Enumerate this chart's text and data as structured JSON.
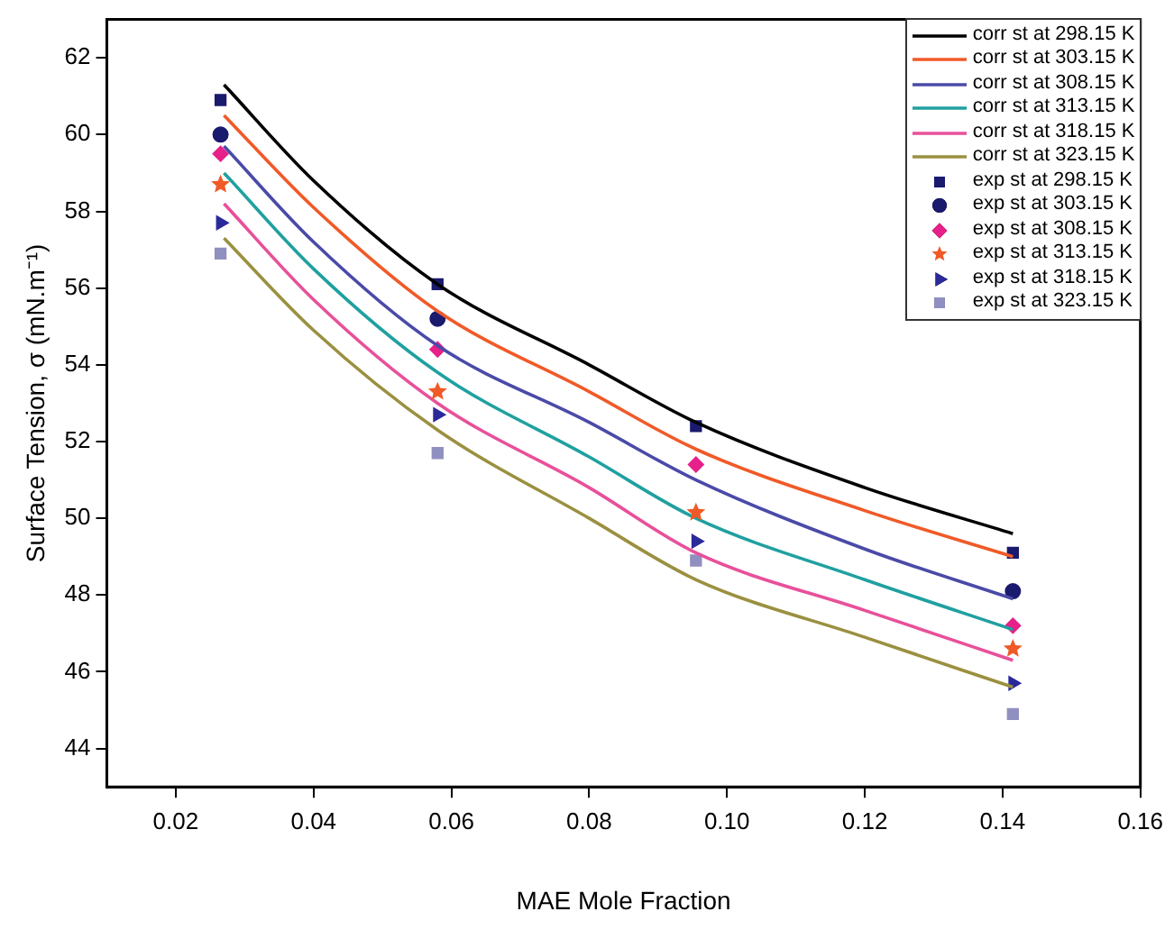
{
  "chart_data": {
    "type": "line",
    "xlabel": "MAE Mole Fraction",
    "ylabel": "Surface Tension, σ (mN.m⁻¹)",
    "xlim": [
      0.01,
      0.16
    ],
    "xticks": [
      {
        "value": 0.02,
        "label": "0.02"
      },
      {
        "value": 0.04,
        "label": "0.04"
      },
      {
        "value": 0.06,
        "label": "0.06"
      },
      {
        "value": 0.08,
        "label": "0.08"
      },
      {
        "value": 0.1,
        "label": "0.10"
      },
      {
        "value": 0.12,
        "label": "0.12"
      },
      {
        "value": 0.14,
        "label": "0.14"
      },
      {
        "value": 0.16,
        "label": "0.16"
      }
    ],
    "ylim": [
      43,
      63
    ],
    "yticks": [
      44,
      46,
      48,
      50,
      52,
      54,
      56,
      58,
      60,
      62
    ],
    "grid": false,
    "legend": "top right",
    "line_style": "solid",
    "series": [
      {
        "name": "corr st at 298.15 K",
        "color": "#000000",
        "marker": "none",
        "x": [
          0.027,
          0.04,
          0.058,
          0.08,
          0.0955,
          0.12,
          0.1415
        ],
        "values": [
          61.3,
          58.8,
          56.1,
          54.0,
          52.5,
          50.8,
          49.6
        ]
      },
      {
        "name": "corr st at 303.15 K",
        "color": "#f05a28",
        "marker": "none",
        "x": [
          0.027,
          0.04,
          0.058,
          0.08,
          0.0955,
          0.12,
          0.1415
        ],
        "values": [
          60.5,
          58.1,
          55.4,
          53.3,
          51.8,
          50.2,
          49.0
        ]
      },
      {
        "name": "corr st at 308.15 K",
        "color": "#4a4aa8",
        "marker": "none",
        "x": [
          0.027,
          0.04,
          0.058,
          0.08,
          0.0955,
          0.12,
          0.1415
        ],
        "values": [
          59.7,
          57.2,
          54.5,
          52.5,
          51.0,
          49.2,
          47.9
        ]
      },
      {
        "name": "corr st at 313.15 K",
        "color": "#20a0a0",
        "marker": "none",
        "x": [
          0.027,
          0.04,
          0.058,
          0.08,
          0.0955,
          0.12,
          0.1415
        ],
        "values": [
          59.0,
          56.5,
          53.8,
          51.6,
          50.0,
          48.4,
          47.1
        ]
      },
      {
        "name": "corr st at 318.15 K",
        "color": "#e8509a",
        "marker": "none",
        "x": [
          0.027,
          0.04,
          0.058,
          0.08,
          0.0955,
          0.12,
          0.1415
        ],
        "values": [
          58.2,
          55.7,
          53.0,
          50.8,
          49.1,
          47.6,
          46.3
        ]
      },
      {
        "name": "corr st at 323.15 K",
        "color": "#9a9040",
        "marker": "none",
        "x": [
          0.027,
          0.04,
          0.058,
          0.08,
          0.0955,
          0.12,
          0.1415
        ],
        "values": [
          57.3,
          54.9,
          52.3,
          50.0,
          48.4,
          46.9,
          45.6
        ]
      },
      {
        "name": "exp st at 298.15 K",
        "type": "scatter",
        "color": "#1a1a6e",
        "marker": "square",
        "x": [
          0.0265,
          0.058,
          0.0955,
          0.1415
        ],
        "values": [
          60.9,
          56.1,
          52.4,
          49.1
        ]
      },
      {
        "name": "exp st at 303.15 K",
        "type": "scatter",
        "color": "#1a1a6e",
        "marker": "circle",
        "x": [
          0.0265,
          0.058,
          0.0955,
          0.1415
        ],
        "values": [
          60.0,
          55.2,
          null,
          48.1
        ]
      },
      {
        "name": "exp st at 308.15 K",
        "type": "scatter",
        "color": "#e8208a",
        "marker": "diamond",
        "x": [
          0.0265,
          0.058,
          0.0955,
          0.1415
        ],
        "values": [
          59.5,
          54.4,
          51.4,
          47.2
        ]
      },
      {
        "name": "exp st at 313.15 K",
        "type": "scatter",
        "color": "#f05a28",
        "marker": "star",
        "x": [
          0.0265,
          0.058,
          0.0955,
          0.1415
        ],
        "values": [
          58.7,
          53.3,
          50.15,
          46.6
        ]
      },
      {
        "name": "exp st at 318.15 K",
        "type": "scatter",
        "color": "#2a2a9a",
        "marker": "triangle",
        "x": [
          0.0265,
          0.058,
          0.0955,
          0.1415
        ],
        "values": [
          57.7,
          52.7,
          49.4,
          45.7
        ]
      },
      {
        "name": "exp st at 323.15 K",
        "type": "scatter",
        "color": "#9090c0",
        "marker": "square",
        "x": [
          0.0265,
          0.058,
          0.0955,
          0.1415
        ],
        "values": [
          56.9,
          51.7,
          48.9,
          44.9
        ]
      }
    ]
  }
}
